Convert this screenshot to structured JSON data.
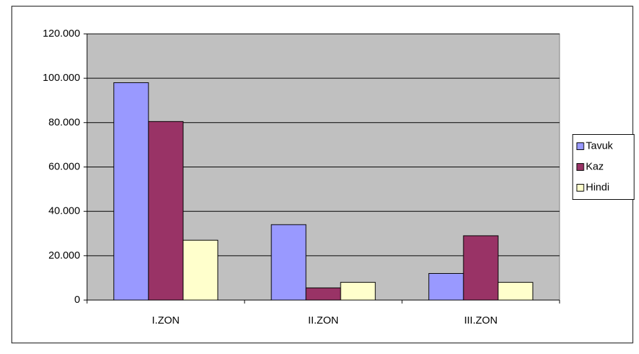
{
  "chart_data": {
    "type": "bar",
    "categories": [
      "I.ZON",
      "II.ZON",
      "III.ZON"
    ],
    "series": [
      {
        "name": "Tavuk",
        "color": "#9999ff",
        "values": [
          98000,
          34000,
          12000
        ]
      },
      {
        "name": "Kaz",
        "color": "#993366",
        "values": [
          80500,
          5500,
          29000
        ]
      },
      {
        "name": "Hindi",
        "color": "#ffffcc",
        "values": [
          27000,
          8000,
          8000
        ]
      }
    ],
    "ylim": [
      0,
      120000
    ],
    "yticks": [
      0,
      {
        "value": 20000,
        "label": "20.000"
      },
      {
        "value": 40000,
        "label": "40.000"
      },
      {
        "value": 60000,
        "label": "60.000"
      },
      {
        "value": 80000,
        "label": "80.000"
      },
      {
        "value": 100000,
        "label": "100.000"
      },
      {
        "value": 120000,
        "label": "120.000"
      }
    ],
    "grid": true,
    "legend": "right"
  }
}
